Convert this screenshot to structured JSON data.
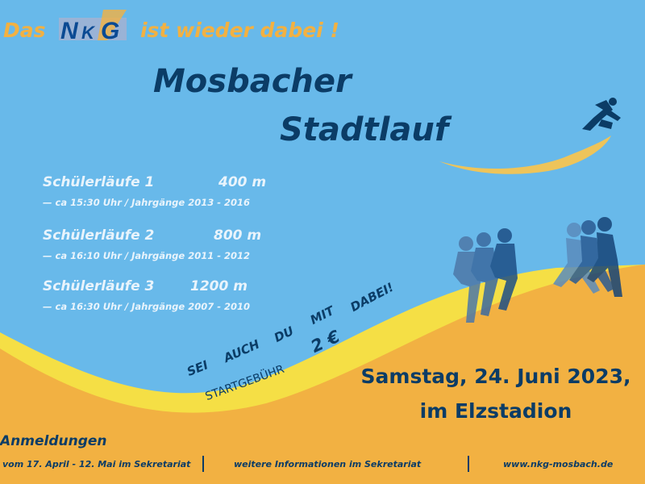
{
  "colors": {
    "sky": "#68b9ea",
    "orange": "#f2b142",
    "yellow": "#f5df45",
    "navy": "#0b3c66",
    "light_text": "#e9f4fc"
  },
  "header": {
    "prefix": "Das",
    "logo_text": "NKG",
    "suffix": "ist wieder dabei !"
  },
  "title": {
    "line1": "Mosbacher",
    "line2": "Stadtlauf"
  },
  "races": [
    {
      "name": "Schülerläufe 1",
      "distance": "400 m",
      "details": "— ca 15:30 Uhr / Jahrgänge 2013 - 2016"
    },
    {
      "name": "Schülerläufe  2",
      "distance": "800 m",
      "details": "— ca 16:10 Uhr / Jahrgänge 2011 - 2012"
    },
    {
      "name": "Schülerläufe 3",
      "distance": "1200 m",
      "details": "— ca 16:30  Uhr / Jahrgänge 2007 - 2010"
    }
  ],
  "slogan": {
    "words": [
      "SEI",
      "AUCH",
      "DU",
      "MIT",
      "DABEI!"
    ]
  },
  "fee": {
    "label": "STARTGEBÜHR",
    "amount": "2 €"
  },
  "event": {
    "date": "Samstag, 24. Juni 2023,",
    "venue": "im Elzstadion"
  },
  "footer": {
    "heading": "Anmeldungen",
    "items": [
      "vom 17. April - 12. Mai im Sekretariat",
      "weitere Informationen im Sekretariat",
      "www.nkg-mosbach.de"
    ]
  },
  "icons": [
    "runner-icon",
    "runners-group-illustration",
    "brush-stroke"
  ]
}
